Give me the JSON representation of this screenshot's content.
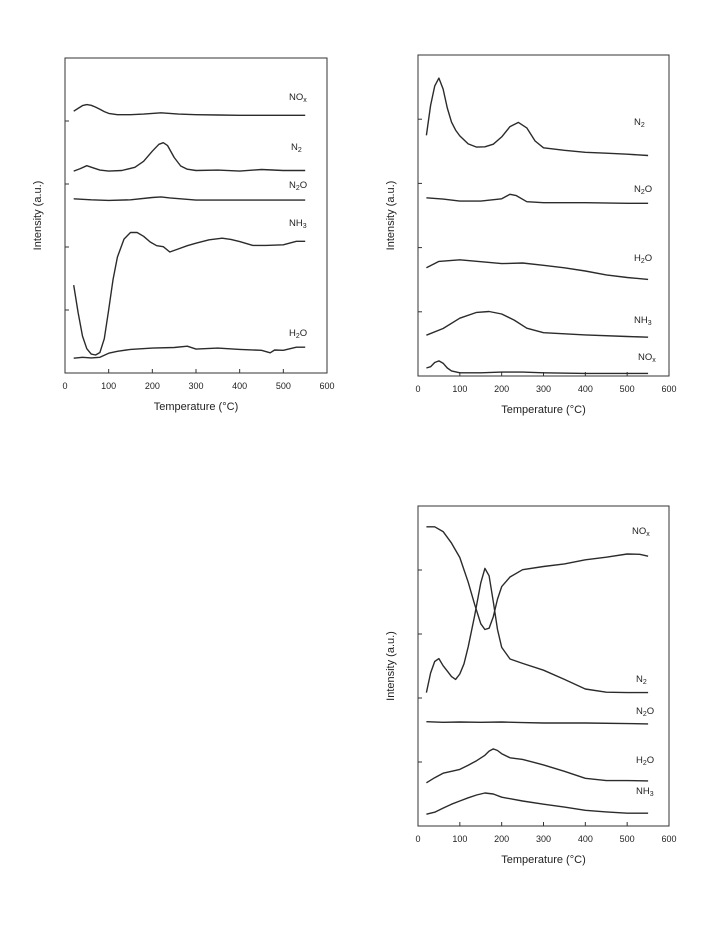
{
  "chart_data": [
    {
      "id": "top-left",
      "type": "line",
      "xlabel": "Temperature (°C)",
      "ylabel": "Intensity (a.u.)",
      "xlim": [
        0,
        600
      ],
      "xticks": [
        0,
        100,
        200,
        300,
        400,
        500,
        600
      ],
      "ylim": [
        0,
        1
      ],
      "grid": false,
      "series": [
        {
          "name": "NO",
          "sub": "x",
          "x": [
            20,
            30,
            40,
            50,
            60,
            70,
            80,
            90,
            100,
            120,
            150,
            180,
            200,
            220,
            240,
            260,
            300,
            350,
            400,
            450,
            500,
            550
          ],
          "y": [
            0.831,
            0.84,
            0.849,
            0.852,
            0.85,
            0.844,
            0.837,
            0.83,
            0.824,
            0.82,
            0.82,
            0.822,
            0.824,
            0.826,
            0.824,
            0.822,
            0.82,
            0.819,
            0.818,
            0.818,
            0.818,
            0.818
          ]
        },
        {
          "name": "N",
          "sub": "2",
          "x": [
            20,
            35,
            50,
            65,
            80,
            100,
            130,
            160,
            180,
            200,
            215,
            225,
            235,
            250,
            265,
            280,
            300,
            350,
            400,
            450,
            500,
            550
          ],
          "y": [
            0.641,
            0.649,
            0.658,
            0.651,
            0.644,
            0.641,
            0.643,
            0.653,
            0.672,
            0.704,
            0.726,
            0.731,
            0.722,
            0.684,
            0.657,
            0.647,
            0.643,
            0.644,
            0.641,
            0.646,
            0.643,
            0.643
          ]
        },
        {
          "name": "N",
          "nameSuffix": "O",
          "sub": "2",
          "x": [
            20,
            60,
            100,
            150,
            200,
            220,
            240,
            300,
            400,
            500,
            550
          ],
          "y": [
            0.553,
            0.55,
            0.548,
            0.55,
            0.557,
            0.559,
            0.556,
            0.549,
            0.549,
            0.549,
            0.549
          ]
        },
        {
          "name": "NH",
          "sub": "3",
          "x": [
            20,
            30,
            40,
            50,
            60,
            70,
            80,
            90,
            100,
            110,
            120,
            135,
            150,
            165,
            180,
            195,
            210,
            225,
            240,
            260,
            280,
            300,
            330,
            360,
            380,
            400,
            430,
            460,
            500,
            530,
            550
          ],
          "y": [
            0.279,
            0.192,
            0.117,
            0.077,
            0.06,
            0.057,
            0.065,
            0.109,
            0.201,
            0.296,
            0.368,
            0.425,
            0.446,
            0.446,
            0.434,
            0.416,
            0.404,
            0.401,
            0.384,
            0.394,
            0.404,
            0.412,
            0.423,
            0.428,
            0.424,
            0.417,
            0.405,
            0.405,
            0.407,
            0.418,
            0.418
          ]
        },
        {
          "name": "H",
          "nameSuffix": "O",
          "sub": "2",
          "x": [
            20,
            40,
            60,
            80,
            100,
            120,
            150,
            200,
            250,
            280,
            300,
            350,
            400,
            450,
            470,
            480,
            500,
            530,
            550
          ],
          "y": [
            0.047,
            0.05,
            0.048,
            0.05,
            0.063,
            0.069,
            0.075,
            0.079,
            0.081,
            0.085,
            0.076,
            0.079,
            0.075,
            0.072,
            0.064,
            0.073,
            0.072,
            0.082,
            0.082
          ]
        }
      ]
    },
    {
      "id": "top-right",
      "type": "line",
      "xlabel": "Temperature (°C)",
      "ylabel": "Intensity (a.u.)",
      "xlim": [
        0,
        600
      ],
      "xticks": [
        0,
        100,
        200,
        300,
        400,
        500,
        600
      ],
      "ylim": [
        0,
        1
      ],
      "grid": false,
      "series": [
        {
          "name": "N",
          "sub": "2",
          "x": [
            20,
            30,
            40,
            50,
            60,
            70,
            80,
            90,
            100,
            120,
            140,
            160,
            180,
            200,
            220,
            240,
            260,
            280,
            300,
            350,
            400,
            450,
            500,
            550
          ],
          "y": [
            0.75,
            0.843,
            0.903,
            0.928,
            0.894,
            0.835,
            0.791,
            0.766,
            0.748,
            0.723,
            0.713,
            0.714,
            0.722,
            0.745,
            0.777,
            0.79,
            0.773,
            0.732,
            0.711,
            0.703,
            0.697,
            0.694,
            0.691,
            0.687
          ]
        },
        {
          "name": "N",
          "nameSuffix": "O",
          "sub": "2",
          "x": [
            20,
            60,
            100,
            150,
            200,
            220,
            235,
            260,
            300,
            400,
            500,
            550
          ],
          "y": [
            0.555,
            0.551,
            0.545,
            0.545,
            0.552,
            0.566,
            0.562,
            0.543,
            0.54,
            0.54,
            0.538,
            0.538
          ]
        },
        {
          "name": "H",
          "nameSuffix": "O",
          "sub": "2",
          "x": [
            20,
            50,
            100,
            150,
            200,
            250,
            300,
            350,
            400,
            450,
            500,
            550
          ],
          "y": [
            0.337,
            0.357,
            0.362,
            0.356,
            0.35,
            0.352,
            0.345,
            0.337,
            0.327,
            0.315,
            0.307,
            0.301
          ]
        },
        {
          "name": "NH",
          "sub": "3",
          "x": [
            20,
            60,
            100,
            140,
            170,
            200,
            230,
            260,
            300,
            400,
            500,
            550
          ],
          "y": [
            0.127,
            0.148,
            0.18,
            0.198,
            0.201,
            0.193,
            0.174,
            0.149,
            0.135,
            0.128,
            0.123,
            0.121
          ]
        },
        {
          "name": "NO",
          "sub": "x",
          "x": [
            20,
            30,
            40,
            50,
            60,
            70,
            80,
            100,
            150,
            200,
            250,
            300,
            400,
            500,
            550
          ],
          "y": [
            0.025,
            0.029,
            0.042,
            0.047,
            0.04,
            0.025,
            0.016,
            0.01,
            0.01,
            0.012,
            0.012,
            0.01,
            0.008,
            0.008,
            0.008
          ]
        }
      ]
    },
    {
      "id": "bottom-right",
      "type": "line",
      "xlabel": "Temperature (°C)",
      "ylabel": "Intensity (a.u.)",
      "xlim": [
        0,
        600
      ],
      "xticks": [
        0,
        100,
        200,
        300,
        400,
        500,
        600
      ],
      "ylim": [
        0,
        1
      ],
      "grid": false,
      "series": [
        {
          "name": "NO",
          "sub": "x",
          "x": [
            20,
            40,
            60,
            80,
            100,
            120,
            135,
            150,
            160,
            170,
            180,
            190,
            200,
            220,
            250,
            300,
            350,
            400,
            450,
            500,
            530,
            550
          ],
          "y": [
            0.935,
            0.935,
            0.92,
            0.884,
            0.839,
            0.762,
            0.694,
            0.632,
            0.614,
            0.618,
            0.654,
            0.709,
            0.748,
            0.778,
            0.801,
            0.811,
            0.819,
            0.832,
            0.84,
            0.85,
            0.849,
            0.843
          ]
        },
        {
          "name": "N",
          "sub": "2",
          "x": [
            20,
            30,
            40,
            50,
            60,
            70,
            80,
            90,
            100,
            110,
            120,
            135,
            150,
            160,
            170,
            180,
            190,
            200,
            220,
            250,
            300,
            350,
            400,
            450,
            500,
            550
          ],
          "y": [
            0.417,
            0.478,
            0.514,
            0.523,
            0.501,
            0.484,
            0.467,
            0.458,
            0.475,
            0.507,
            0.56,
            0.655,
            0.76,
            0.805,
            0.782,
            0.701,
            0.614,
            0.558,
            0.522,
            0.508,
            0.487,
            0.458,
            0.428,
            0.418,
            0.417,
            0.417
          ]
        },
        {
          "name": "N",
          "nameSuffix": "O",
          "sub": "2",
          "x": [
            20,
            60,
            100,
            150,
            200,
            250,
            300,
            400,
            500,
            550
          ],
          "y": [
            0.326,
            0.324,
            0.325,
            0.324,
            0.325,
            0.323,
            0.322,
            0.322,
            0.32,
            0.319
          ]
        },
        {
          "name": "H",
          "nameSuffix": "O",
          "sub": "2",
          "x": [
            20,
            40,
            60,
            80,
            100,
            120,
            140,
            160,
            170,
            180,
            190,
            200,
            220,
            250,
            300,
            350,
            400,
            450,
            500,
            550
          ],
          "y": [
            0.135,
            0.151,
            0.165,
            0.171,
            0.177,
            0.19,
            0.204,
            0.221,
            0.234,
            0.241,
            0.236,
            0.226,
            0.213,
            0.208,
            0.191,
            0.171,
            0.149,
            0.142,
            0.142,
            0.141
          ]
        },
        {
          "name": "NH",
          "sub": "3",
          "x": [
            20,
            40,
            60,
            80,
            100,
            120,
            140,
            160,
            180,
            200,
            250,
            300,
            350,
            400,
            450,
            500,
            550
          ],
          "y": [
            0.037,
            0.043,
            0.056,
            0.068,
            0.078,
            0.088,
            0.097,
            0.103,
            0.1,
            0.09,
            0.078,
            0.068,
            0.059,
            0.049,
            0.044,
            0.04,
            0.04
          ]
        }
      ]
    }
  ]
}
